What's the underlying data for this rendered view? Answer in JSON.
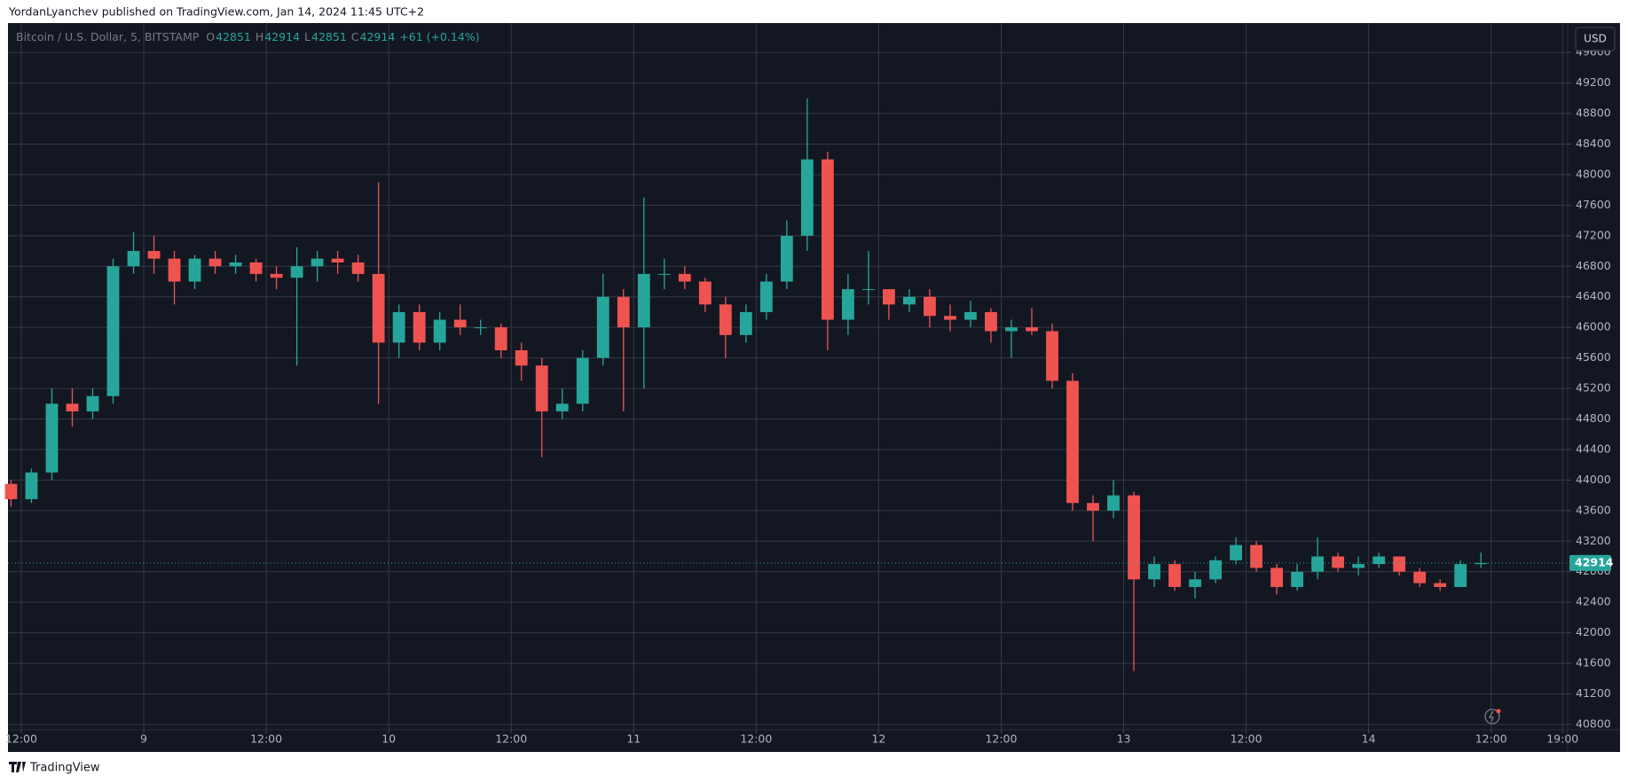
{
  "header": {
    "text": "YordanLyanchev published on TradingView.com, Jan 14, 2024 11:45 UTC+2"
  },
  "footer": {
    "brand": "TradingView"
  },
  "legend": {
    "symbol": "Bitcoin / U.S. Dollar, 5, BITSTAMP",
    "items": [
      {
        "label": "O",
        "value": 42851
      },
      {
        "label": "H",
        "value": 42914
      },
      {
        "label": "L",
        "value": 42851
      },
      {
        "label": "C",
        "value": 42914
      }
    ],
    "change": "+61 (+0.14%)"
  },
  "currency_button": "USD",
  "chart_data": {
    "type": "candlestick",
    "up_color": "#26a69a",
    "down_color": "#ef5350",
    "grid": true,
    "last_price": 42914,
    "x": [
      11,
      13,
      15,
      17,
      19,
      21,
      23,
      25,
      27,
      29,
      31,
      33,
      35,
      37,
      39,
      41,
      43,
      45,
      47,
      49,
      51,
      53,
      55,
      57,
      59,
      61,
      63,
      65,
      67,
      69,
      71,
      73,
      75,
      77,
      79,
      81,
      83,
      85,
      87,
      89,
      91,
      93,
      95,
      97,
      99,
      101,
      103,
      105,
      107,
      109,
      111,
      113,
      115,
      117,
      119,
      121,
      123,
      125,
      127,
      129,
      131,
      133,
      135,
      137,
      139,
      141,
      143,
      145,
      147,
      149,
      151,
      153,
      155
    ],
    "open": [
      43950,
      43750,
      44100,
      45000,
      44900,
      45100,
      46800,
      47000,
      46900,
      46600,
      46900,
      46800,
      46850,
      46700,
      46650,
      46800,
      46900,
      46850,
      46700,
      45800,
      46200,
      45800,
      46100,
      46000,
      46000,
      45700,
      45500,
      44900,
      45000,
      45600,
      46400,
      46000,
      46700,
      46700,
      46600,
      46300,
      45900,
      46200,
      46600,
      47200,
      48200,
      46100,
      46500,
      46500,
      46300,
      46400,
      46150,
      46100,
      46200,
      45950,
      46000,
      45950,
      45300,
      43700,
      43600,
      43800,
      42700,
      42900,
      42600,
      42700,
      42950,
      43150,
      42850,
      42600,
      42800,
      43000,
      42850,
      42900,
      43000,
      42800,
      42650,
      42600,
      42900
    ],
    "high": [
      44000,
      44150,
      45200,
      45200,
      45200,
      46900,
      47250,
      47200,
      47000,
      46950,
      47000,
      46950,
      46900,
      46800,
      47050,
      47000,
      47000,
      46950,
      47900,
      46300,
      46300,
      46200,
      46300,
      46100,
      46050,
      45800,
      45600,
      45200,
      45700,
      46700,
      46500,
      47700,
      46900,
      46800,
      46650,
      46400,
      46300,
      46700,
      47400,
      49000,
      48300,
      46700,
      47000,
      46500,
      46500,
      46500,
      46300,
      46350,
      46250,
      46100,
      46250,
      46050,
      45400,
      43800,
      44000,
      43850,
      43000,
      42950,
      42800,
      43000,
      43250,
      43200,
      42900,
      42900,
      43250,
      43050,
      43000,
      43050,
      43000,
      42850,
      42700,
      42950,
      43050
    ],
    "low": [
      43650,
      43700,
      44000,
      44700,
      44800,
      45000,
      46700,
      46700,
      46300,
      46500,
      46700,
      46700,
      46600,
      46500,
      45500,
      46600,
      46700,
      46600,
      45000,
      45600,
      45700,
      45700,
      45900,
      45900,
      45600,
      45300,
      44300,
      44800,
      44900,
      45500,
      44900,
      45200,
      46500,
      46500,
      46200,
      45600,
      45800,
      46100,
      46500,
      47000,
      45700,
      45900,
      46300,
      46100,
      46200,
      46000,
      45950,
      46000,
      45800,
      45600,
      45900,
      45200,
      43600,
      43200,
      43500,
      41500,
      42600,
      42550,
      42450,
      42650,
      42900,
      42800,
      42500,
      42550,
      42700,
      42800,
      42750,
      42850,
      42750,
      42600,
      42550,
      42600,
      42850
    ],
    "close": [
      43750,
      44100,
      45000,
      44900,
      45100,
      46800,
      47000,
      46900,
      46600,
      46900,
      46800,
      46850,
      46700,
      46650,
      46800,
      46900,
      46850,
      46700,
      45800,
      46200,
      45800,
      46100,
      46000,
      46000,
      45700,
      45500,
      44900,
      45000,
      45600,
      46400,
      46000,
      46700,
      46700,
      46600,
      46300,
      45900,
      46200,
      46600,
      47200,
      48200,
      46100,
      46500,
      46500,
      46300,
      46400,
      46150,
      46100,
      46200,
      45950,
      46000,
      45950,
      45300,
      43700,
      43600,
      43800,
      42700,
      42900,
      42600,
      42700,
      42950,
      43150,
      42850,
      42600,
      42800,
      43000,
      42850,
      42900,
      43000,
      42800,
      42650,
      42600,
      42900,
      42914
    ],
    "xlim": [
      10.7,
      163.5
    ],
    "xticks": [
      {
        "value": 12,
        "label": "12:00"
      },
      {
        "value": 24,
        "label": "9"
      },
      {
        "value": 36,
        "label": "12:00"
      },
      {
        "value": 48,
        "label": "10"
      },
      {
        "value": 60,
        "label": "12:00"
      },
      {
        "value": 72,
        "label": "11"
      },
      {
        "value": 84,
        "label": "12:00"
      },
      {
        "value": 96,
        "label": "12"
      },
      {
        "value": 108,
        "label": "12:00"
      },
      {
        "value": 120,
        "label": "13"
      },
      {
        "value": 132,
        "label": "12:00"
      },
      {
        "value": 144,
        "label": "14"
      },
      {
        "value": 156,
        "label": "12:00"
      },
      {
        "value": 163,
        "label": "19:00"
      }
    ],
    "ylim": [
      40730,
      49985
    ],
    "yticks": [
      40800,
      41200,
      41600,
      42000,
      42400,
      42800,
      43200,
      43600,
      44000,
      44400,
      44800,
      45200,
      45600,
      46000,
      46400,
      46800,
      47200,
      47600,
      48000,
      48400,
      48800,
      49200,
      49600
    ]
  }
}
